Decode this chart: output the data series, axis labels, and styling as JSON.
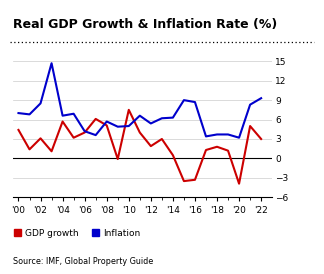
{
  "title": "Real GDP Growth & Inflation Rate (%)",
  "source": "Source: IMF, Global Property Guide",
  "years": [
    2000,
    2001,
    2002,
    2003,
    2004,
    2005,
    2006,
    2007,
    2008,
    2009,
    2010,
    2011,
    2012,
    2013,
    2014,
    2015,
    2016,
    2017,
    2018,
    2019,
    2020,
    2021,
    2022
  ],
  "gdp": [
    4.4,
    1.4,
    3.1,
    1.1,
    5.7,
    3.2,
    4.0,
    6.1,
    5.1,
    -0.1,
    7.5,
    4.0,
    1.9,
    3.0,
    0.5,
    -3.5,
    -3.3,
    1.3,
    1.8,
    1.2,
    -3.9,
    5.0,
    3.0
  ],
  "inflation": [
    7.0,
    6.8,
    8.5,
    14.7,
    6.6,
    6.9,
    4.2,
    3.6,
    5.7,
    4.9,
    5.0,
    6.6,
    5.4,
    6.2,
    6.3,
    9.0,
    8.7,
    3.4,
    3.7,
    3.7,
    3.2,
    8.3,
    9.3
  ],
  "gdp_color": "#cc0000",
  "inflation_color": "#0000cc",
  "ylim": [
    -6,
    16
  ],
  "yticks": [
    -6,
    -3,
    0,
    3,
    6,
    9,
    12,
    15
  ],
  "xtick_years": [
    2000,
    2002,
    2004,
    2006,
    2008,
    2010,
    2012,
    2014,
    2016,
    2018,
    2020,
    2022
  ],
  "xtick_labels": [
    "'00",
    "'02",
    "'04",
    "'06",
    "'08",
    "'10",
    "'12",
    "'14",
    "'16",
    "'18",
    "'20",
    "'22"
  ],
  "legend_gdp": "GDP growth",
  "legend_inflation": "Inflation",
  "bg_color": "#ffffff",
  "grid_color": "#cccccc",
  "line_width": 1.5,
  "title_fontsize": 9,
  "tick_fontsize": 6.5,
  "legend_fontsize": 6.5,
  "source_fontsize": 5.8
}
